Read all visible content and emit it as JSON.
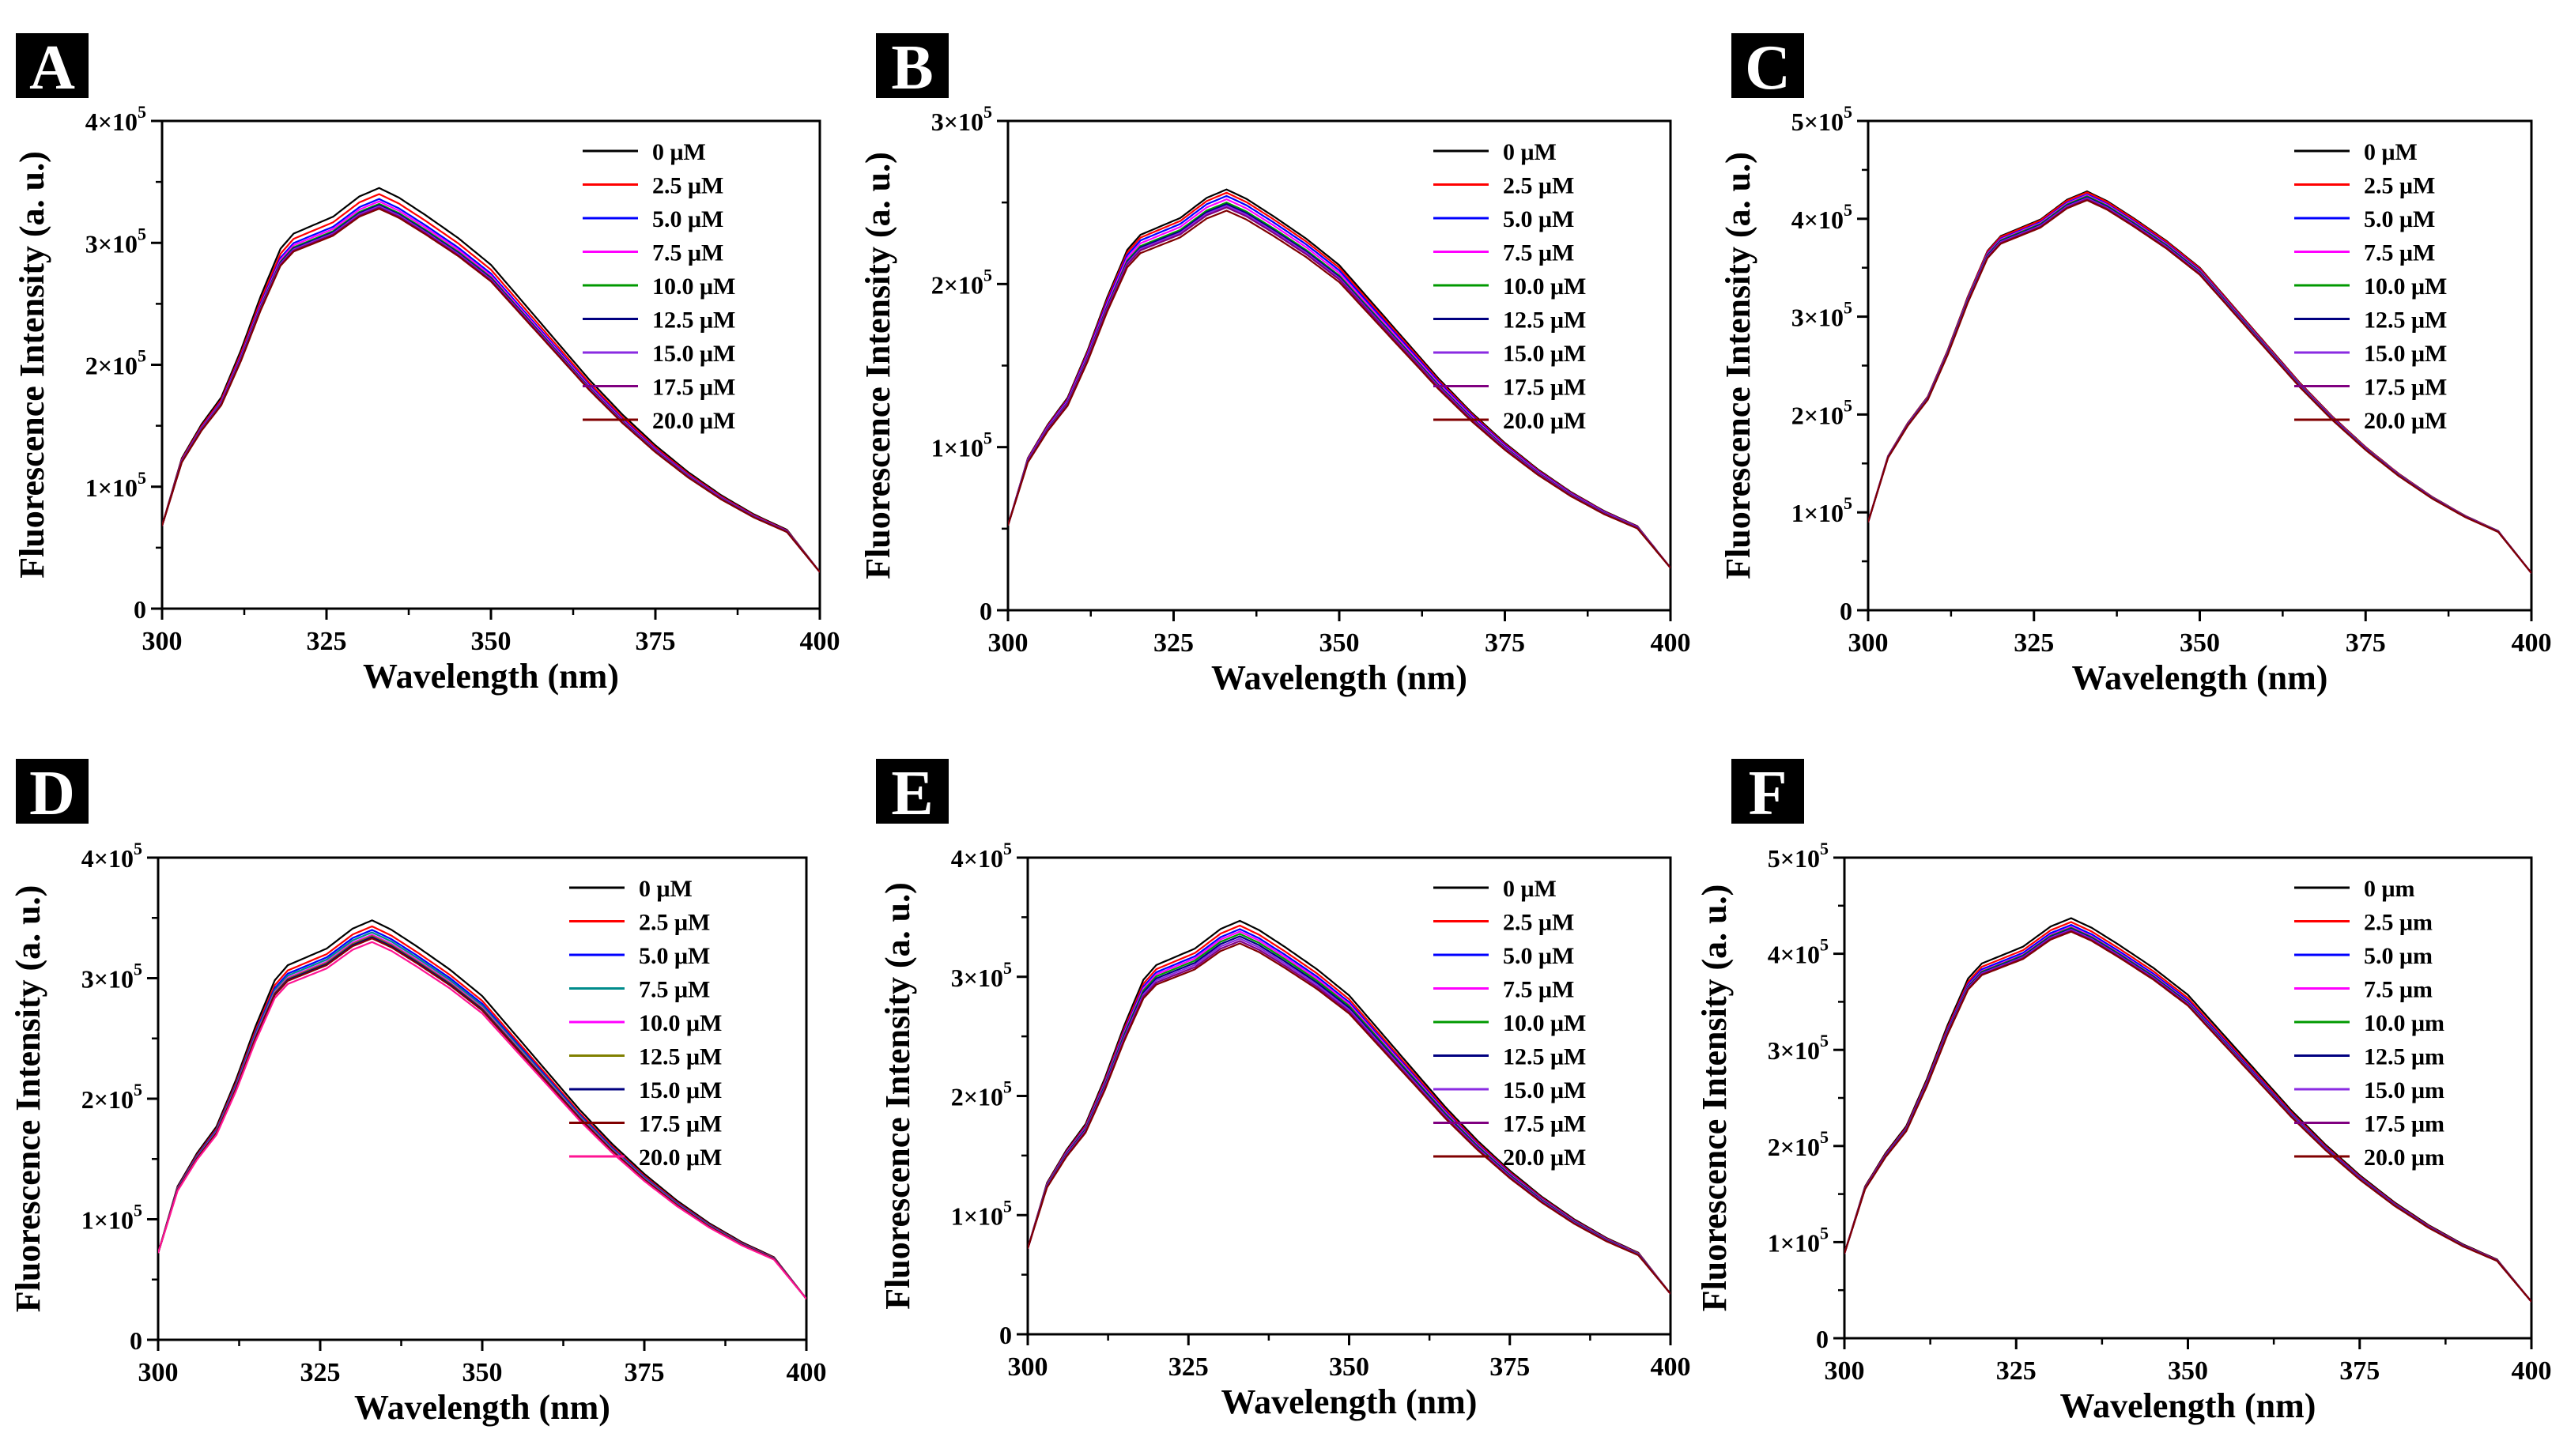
{
  "colors": {
    "background": "#ffffff",
    "axis": "#000000",
    "panel_label_bg": "#000000",
    "panel_label_text": "#ffffff",
    "series_palette_ABCEF": [
      "#000000",
      "#ff0000",
      "#0000ff",
      "#ff00ff",
      "#009900",
      "#000080",
      "#8a2be2",
      "#800080",
      "#800000"
    ],
    "series_palette_D": [
      "#000000",
      "#ff0000",
      "#0000ff",
      "#008b8b",
      "#ff00ff",
      "#808000",
      "#000080",
      "#800000",
      "#ff1493"
    ]
  },
  "chart_data": [
    {
      "panel": "A",
      "type": "line",
      "xlabel": "Wavelength (nm)",
      "ylabel": "Fluorescence Intensity (a. u.)",
      "xlim": [
        300,
        400
      ],
      "ylim": [
        0,
        400000
      ],
      "x_ticks": [
        "300",
        "325",
        "350",
        "375",
        "400"
      ],
      "y_ticks": [
        {
          "base": "0",
          "exp": ""
        },
        {
          "base": "1×10",
          "exp": "5"
        },
        {
          "base": "2×10",
          "exp": "5"
        },
        {
          "base": "3×10",
          "exp": "5"
        },
        {
          "base": "4×10",
          "exp": "5"
        }
      ],
      "palette": "ABCEF",
      "legend_position": "top-right",
      "series": [
        {
          "name": "0 μM",
          "peak": 345000,
          "start": 68000,
          "end": 30000
        },
        {
          "name": "2.5 μM",
          "peak": 340000,
          "start": 68000,
          "end": 30000
        },
        {
          "name": "5.0 μM",
          "peak": 336000,
          "start": 68000,
          "end": 30000
        },
        {
          "name": "7.5 μM",
          "peak": 334000,
          "start": 68000,
          "end": 30000
        },
        {
          "name": "10.0 μM",
          "peak": 332000,
          "start": 68000,
          "end": 30000
        },
        {
          "name": "12.5 μM",
          "peak": 331000,
          "start": 68000,
          "end": 30000
        },
        {
          "name": "15.0 μM",
          "peak": 330000,
          "start": 68000,
          "end": 30000
        },
        {
          "name": "17.5 μM",
          "peak": 329000,
          "start": 68000,
          "end": 30000
        },
        {
          "name": "20.0 μM",
          "peak": 328000,
          "start": 68000,
          "end": 30000
        }
      ]
    },
    {
      "panel": "B",
      "type": "line",
      "xlabel": "Wavelength (nm)",
      "ylabel": "Fluorescence Intensity (a. u.)",
      "xlim": [
        300,
        400
      ],
      "ylim": [
        0,
        300000
      ],
      "x_ticks": [
        "300",
        "325",
        "350",
        "375",
        "400"
      ],
      "y_ticks": [
        {
          "base": "0",
          "exp": ""
        },
        {
          "base": "1×10",
          "exp": "5"
        },
        {
          "base": "2×10",
          "exp": "5"
        },
        {
          "base": "3×10",
          "exp": "5"
        }
      ],
      "palette": "ABCEF",
      "legend_position": "top-right",
      "series": [
        {
          "name": "0 μM",
          "peak": 258000,
          "start": 52000,
          "end": 26000
        },
        {
          "name": "2.5 μM",
          "peak": 256000,
          "start": 52000,
          "end": 26000
        },
        {
          "name": "5.0 μM",
          "peak": 254000,
          "start": 52000,
          "end": 26000
        },
        {
          "name": "7.5 μM",
          "peak": 252000,
          "start": 52000,
          "end": 26000
        },
        {
          "name": "10.0 μM",
          "peak": 250000,
          "start": 52000,
          "end": 26000
        },
        {
          "name": "12.5 μM",
          "peak": 249000,
          "start": 52000,
          "end": 26000
        },
        {
          "name": "15.0 μM",
          "peak": 248000,
          "start": 52000,
          "end": 26000
        },
        {
          "name": "17.5 μM",
          "peak": 247000,
          "start": 52000,
          "end": 26000
        },
        {
          "name": "20.0 μM",
          "peak": 245000,
          "start": 52000,
          "end": 26000
        }
      ]
    },
    {
      "panel": "C",
      "type": "line",
      "xlabel": "Wavelength (nm)",
      "ylabel": "Fluorescence Intensity (a. u.)",
      "xlim": [
        300,
        400
      ],
      "ylim": [
        0,
        500000
      ],
      "x_ticks": [
        "300",
        "325",
        "350",
        "375",
        "400"
      ],
      "y_ticks": [
        {
          "base": "0",
          "exp": ""
        },
        {
          "base": "1×10",
          "exp": "5"
        },
        {
          "base": "2×10",
          "exp": "5"
        },
        {
          "base": "3×10",
          "exp": "5"
        },
        {
          "base": "4×10",
          "exp": "5"
        },
        {
          "base": "5×10",
          "exp": "5"
        }
      ],
      "palette": "ABCEF",
      "legend_position": "top-right",
      "series": [
        {
          "name": "0 μM",
          "peak": 428000,
          "start": 90000,
          "end": 38000
        },
        {
          "name": "2.5 μM",
          "peak": 427000,
          "start": 90000,
          "end": 38000
        },
        {
          "name": "5.0 μM",
          "peak": 425000,
          "start": 90000,
          "end": 38000
        },
        {
          "name": "7.5 μM",
          "peak": 424000,
          "start": 90000,
          "end": 38000
        },
        {
          "name": "10.0 μM",
          "peak": 423000,
          "start": 90000,
          "end": 38000
        },
        {
          "name": "12.5 μM",
          "peak": 422000,
          "start": 90000,
          "end": 38000
        },
        {
          "name": "15.0 μM",
          "peak": 421000,
          "start": 90000,
          "end": 38000
        },
        {
          "name": "17.5 μM",
          "peak": 420000,
          "start": 90000,
          "end": 38000
        },
        {
          "name": "20.0 μM",
          "peak": 419000,
          "start": 90000,
          "end": 38000
        }
      ]
    },
    {
      "panel": "D",
      "type": "line",
      "xlabel": "Wavelength (nm)",
      "ylabel": "Fluorescence Intensity (a. u.)",
      "xlim": [
        300,
        400
      ],
      "ylim": [
        0,
        400000
      ],
      "x_ticks": [
        "300",
        "325",
        "350",
        "375",
        "400"
      ],
      "y_ticks": [
        {
          "base": "0",
          "exp": ""
        },
        {
          "base": "1×10",
          "exp": "5"
        },
        {
          "base": "2×10",
          "exp": "5"
        },
        {
          "base": "3×10",
          "exp": "5"
        },
        {
          "base": "4×10",
          "exp": "5"
        }
      ],
      "palette": "D",
      "legend_position": "top-right",
      "series": [
        {
          "name": "0 μM",
          "peak": 348000,
          "start": 72000,
          "end": 34000
        },
        {
          "name": "2.5 μM",
          "peak": 343000,
          "start": 72000,
          "end": 34000
        },
        {
          "name": "5.0 μM",
          "peak": 340000,
          "start": 72000,
          "end": 34000
        },
        {
          "name": "7.5 μM",
          "peak": 338000,
          "start": 72000,
          "end": 34000
        },
        {
          "name": "10.0 μM",
          "peak": 336000,
          "start": 72000,
          "end": 34000
        },
        {
          "name": "12.5 μM",
          "peak": 335000,
          "start": 72000,
          "end": 34000
        },
        {
          "name": "15.0 μM",
          "peak": 334000,
          "start": 72000,
          "end": 34000
        },
        {
          "name": "17.5 μM",
          "peak": 333000,
          "start": 72000,
          "end": 34000
        },
        {
          "name": "20.0 μM",
          "peak": 330000,
          "start": 72000,
          "end": 34000
        }
      ]
    },
    {
      "panel": "E",
      "type": "line",
      "xlabel": "Wavelength (nm)",
      "ylabel": "Fluorescence Intensity (a. u.)",
      "xlim": [
        300,
        400
      ],
      "ylim": [
        0,
        400000
      ],
      "x_ticks": [
        "300",
        "325",
        "350",
        "375",
        "400"
      ],
      "y_ticks": [
        {
          "base": "0",
          "exp": ""
        },
        {
          "base": "1×10",
          "exp": "5"
        },
        {
          "base": "2×10",
          "exp": "5"
        },
        {
          "base": "3×10",
          "exp": "5"
        },
        {
          "base": "4×10",
          "exp": "5"
        }
      ],
      "palette": "ABCEF",
      "legend_position": "top-right",
      "series": [
        {
          "name": "0 μM",
          "peak": 347000,
          "start": 72000,
          "end": 34000
        },
        {
          "name": "2.5 μM",
          "peak": 343000,
          "start": 72000,
          "end": 34000
        },
        {
          "name": "5.0 μM",
          "peak": 340000,
          "start": 72000,
          "end": 34000
        },
        {
          "name": "7.5 μM",
          "peak": 338000,
          "start": 72000,
          "end": 34000
        },
        {
          "name": "10.0 μM",
          "peak": 336000,
          "start": 72000,
          "end": 34000
        },
        {
          "name": "12.5 μM",
          "peak": 334000,
          "start": 72000,
          "end": 34000
        },
        {
          "name": "15.0 μM",
          "peak": 332000,
          "start": 72000,
          "end": 34000
        },
        {
          "name": "17.5 μM",
          "peak": 330000,
          "start": 72000,
          "end": 34000
        },
        {
          "name": "20.0 μM",
          "peak": 328000,
          "start": 72000,
          "end": 34000
        }
      ]
    },
    {
      "panel": "F",
      "type": "line",
      "xlabel": "Wavelength (nm)",
      "ylabel": "Fluorescence Intensity (a. u.)",
      "xlim": [
        300,
        400
      ],
      "ylim": [
        0,
        500000
      ],
      "x_ticks": [
        "300",
        "325",
        "350",
        "375",
        "400"
      ],
      "y_ticks": [
        {
          "base": "0",
          "exp": ""
        },
        {
          "base": "1×10",
          "exp": "5"
        },
        {
          "base": "2×10",
          "exp": "5"
        },
        {
          "base": "3×10",
          "exp": "5"
        },
        {
          "base": "4×10",
          "exp": "5"
        },
        {
          "base": "5×10",
          "exp": "5"
        }
      ],
      "palette": "ABCEF",
      "legend_position": "top-right",
      "series": [
        {
          "name": "0 μm",
          "peak": 437000,
          "start": 88000,
          "end": 38000
        },
        {
          "name": "2.5 μm",
          "peak": 433000,
          "start": 88000,
          "end": 38000
        },
        {
          "name": "5.0 μm",
          "peak": 430000,
          "start": 88000,
          "end": 38000
        },
        {
          "name": "7.5 μm",
          "peak": 428000,
          "start": 88000,
          "end": 38000
        },
        {
          "name": "10.0 μm",
          "peak": 427000,
          "start": 88000,
          "end": 38000
        },
        {
          "name": "12.5 μm",
          "peak": 426000,
          "start": 88000,
          "end": 38000
        },
        {
          "name": "15.0 μm",
          "peak": 425000,
          "start": 88000,
          "end": 38000
        },
        {
          "name": "17.5 μm",
          "peak": 424000,
          "start": 88000,
          "end": 38000
        },
        {
          "name": "20.0 μm",
          "peak": 423000,
          "start": 88000,
          "end": 38000
        }
      ]
    }
  ]
}
